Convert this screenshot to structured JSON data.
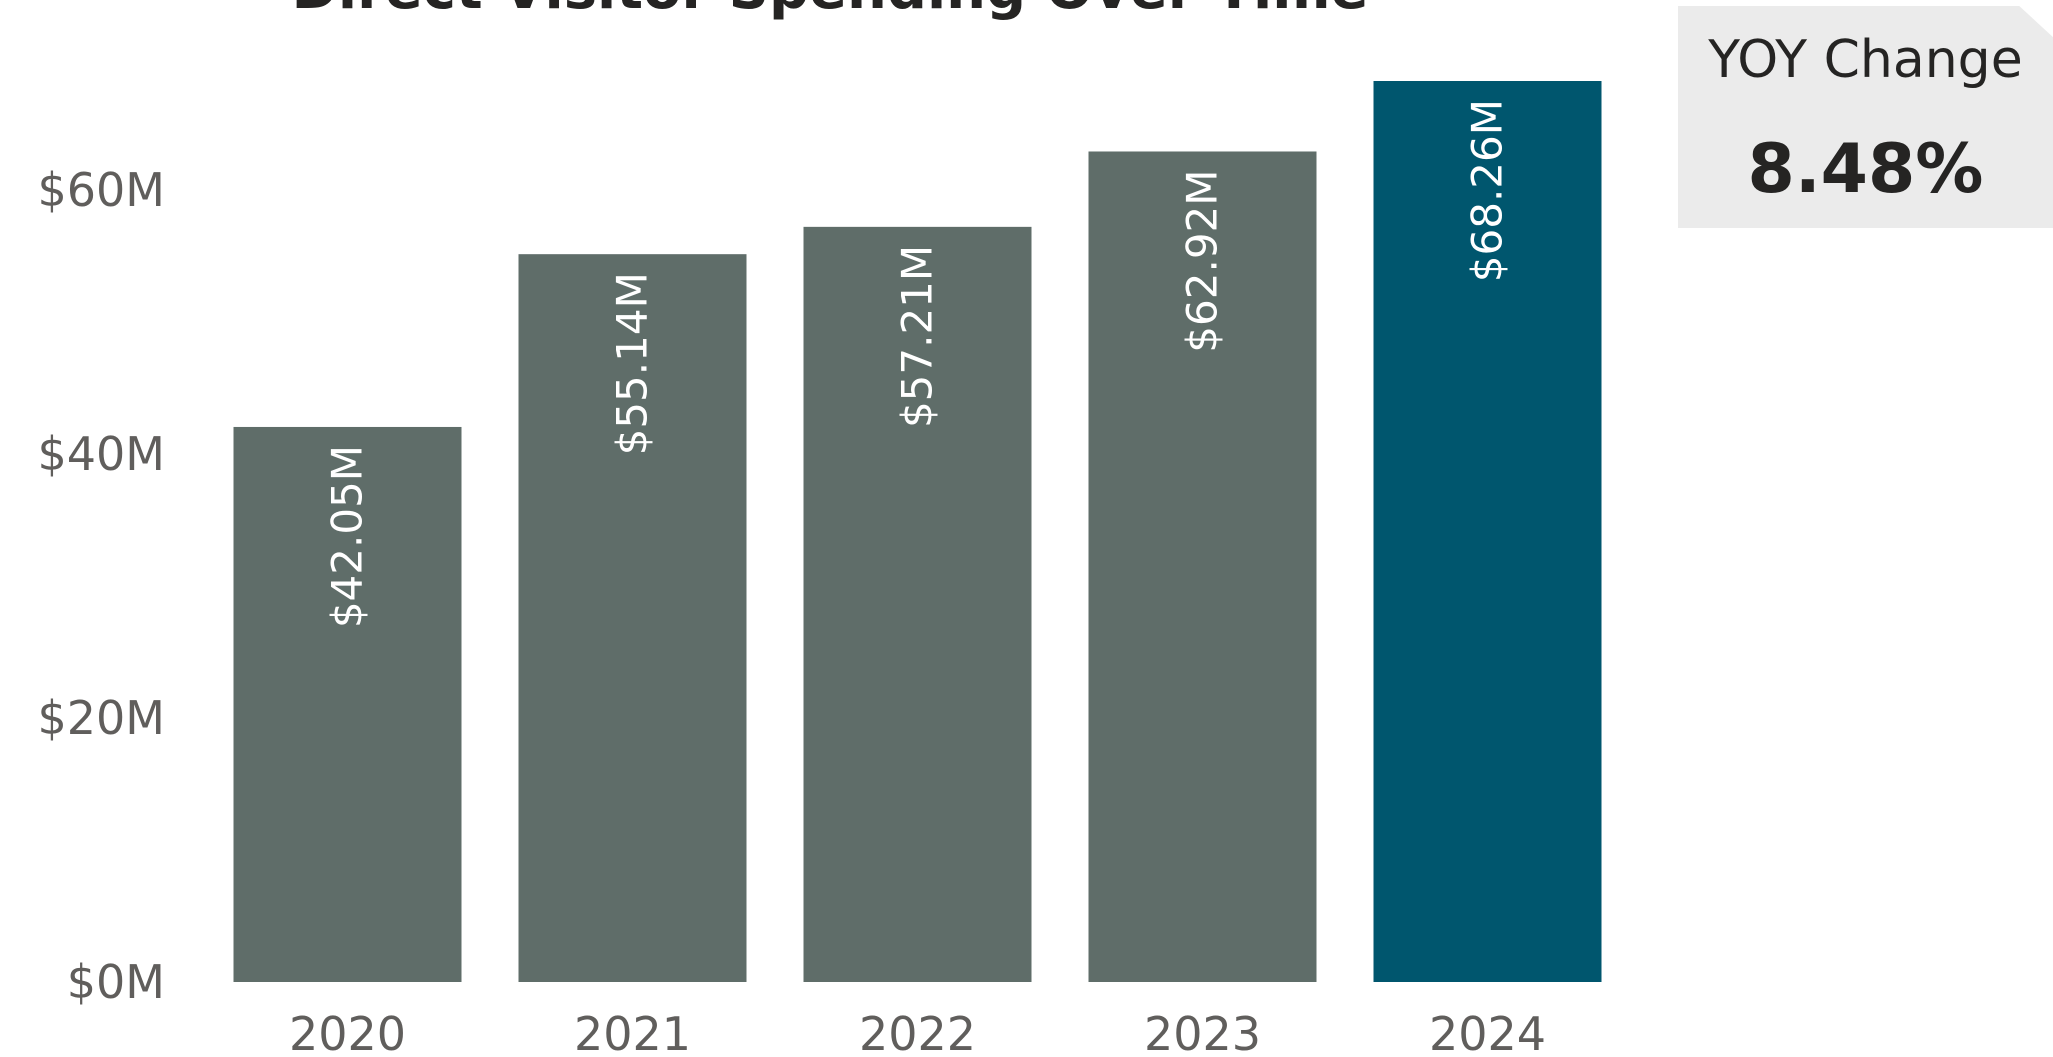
{
  "chart_data": {
    "type": "bar",
    "title": "Direct Visitor Spending Over Time",
    "categories": [
      "2020",
      "2021",
      "2022",
      "2023",
      "2024"
    ],
    "values": [
      42.05,
      55.14,
      57.21,
      62.92,
      68.26
    ],
    "value_labels": [
      "$42.05M",
      "$55.14M",
      "$57.21M",
      "$62.92M",
      "$68.26M"
    ],
    "unit": "$M",
    "ylim": [
      0,
      68.26
    ],
    "yticks": [
      0,
      20,
      40,
      60
    ],
    "ytick_labels": [
      "$0M",
      "$20M",
      "$40M",
      "$60M"
    ],
    "xlabel": "",
    "ylabel": "",
    "grid": false,
    "legend": "none",
    "colors": {
      "bar": "#5f6d69",
      "highlight": "#00566e",
      "highlight_index": 4,
      "label_on_bar": "#ffffff",
      "label_above_bar": "#605e5c"
    }
  },
  "kpi": {
    "label": "YOY Change",
    "value": "8.48%"
  }
}
